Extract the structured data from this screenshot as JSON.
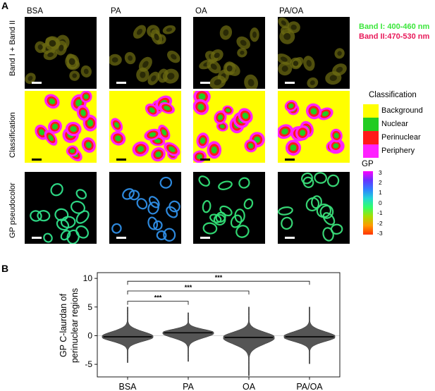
{
  "panel_a": {
    "letter": "A",
    "columns": [
      "BSA",
      "PA",
      "OA",
      "PA/OA"
    ],
    "rows": [
      "Band I + Band II",
      "Classification",
      "GP pseudocolor"
    ],
    "band_legend": {
      "band1": "Band I: 400-460 nm",
      "band2": "Band II:470-530 nm",
      "band1_color": "#3be63b",
      "band2_color": "#e8195a"
    },
    "classification_legend": {
      "title": "Classification",
      "items": [
        {
          "label": "Background",
          "color": "#ffff00"
        },
        {
          "label": "Nuclear",
          "color": "#22cc22"
        },
        {
          "label": "Perinuclear",
          "color": "#ff1a1a"
        },
        {
          "label": "Periphery",
          "color": "#ff22ff"
        }
      ]
    },
    "gp_colorbar": {
      "title": "GP",
      "ticks": [
        "3",
        "2",
        "1",
        "0",
        "-1",
        "-2",
        "-3"
      ],
      "colors": [
        "#ff00ff",
        "#6633ff",
        "#2f7fff",
        "#22d6d6",
        "#33ff66",
        "#aadd00",
        "#ff9900",
        "#ff3300"
      ]
    }
  },
  "panel_b": {
    "letter": "B"
  },
  "chart_data": {
    "type": "violin",
    "categories": [
      "BSA",
      "PA",
      "OA",
      "PA/OA"
    ],
    "medians": [
      -0.2,
      0.5,
      -0.3,
      -0.2
    ],
    "ranges": [
      [
        -4.7,
        5.0
      ],
      [
        -4.5,
        4.0
      ],
      [
        -7.0,
        5.0
      ],
      [
        -4.9,
        5.0
      ]
    ],
    "ylabel": "GP C-laurdan of\nperinuclear regions",
    "ylabel_line1": "GP C-laurdan of",
    "ylabel_line2": "perinuclear regions",
    "ylim": [
      -7.2,
      11.0
    ],
    "yticks": [
      -5,
      0,
      5,
      10
    ],
    "hline": 0,
    "significance": [
      {
        "from": "BSA",
        "to": "PA",
        "label": "***"
      },
      {
        "from": "BSA",
        "to": "OA",
        "label": "***"
      },
      {
        "from": "BSA",
        "to": "PA/OA",
        "label": "***"
      }
    ],
    "fill_color": "#555555"
  }
}
